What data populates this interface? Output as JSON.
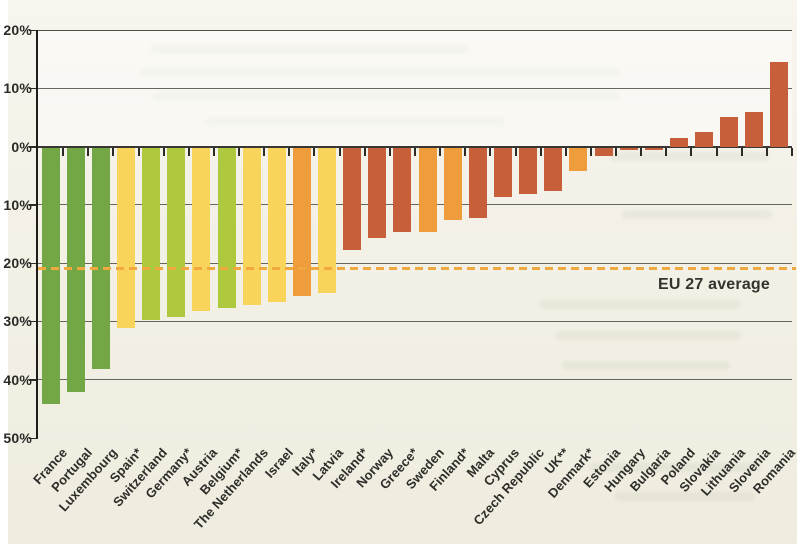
{
  "chart_data": {
    "type": "bar",
    "title": "",
    "xlabel": "",
    "ylabel": "",
    "ylim": [
      -50,
      20
    ],
    "yticks": [
      20,
      10,
      0,
      -10,
      -20,
      -30,
      -40,
      -50
    ],
    "ytick_labels": [
      "20%",
      "10%",
      "0%",
      "10%",
      "20%",
      "30%",
      "40%",
      "50%"
    ],
    "grid": "horizontal",
    "legend": "none",
    "annotation": {
      "label": "EU 27 average",
      "value": -21,
      "style": "dashed"
    },
    "categories": [
      "France",
      "Portugal",
      "Luxembourg",
      "Spain*",
      "Switzerland",
      "Germany*",
      "Austria",
      "Belgium*",
      "The Netherlands",
      "Israel",
      "Italy*",
      "Latvia",
      "Ireland*",
      "Norway",
      "Greece*",
      "Sweden",
      "Finland*",
      "Malta",
      "Cyprus",
      "Czech Republic",
      "UK**",
      "Denmark*",
      "Estonia",
      "Hungary",
      "Bulgaria",
      "Poland",
      "Slovakia",
      "Lithuania",
      "Slovenia",
      "Romania"
    ],
    "values": [
      -44,
      -42,
      -38,
      -31,
      -29.5,
      -29,
      -28,
      -27.5,
      -27,
      -26.5,
      -25.5,
      -25,
      -17.5,
      -15.5,
      -14.5,
      -14.5,
      -12.5,
      -12,
      -8.5,
      -8,
      -7.5,
      -4,
      -1.5,
      -0.5,
      -0.5,
      1.5,
      2.5,
      5,
      6,
      14.5
    ],
    "bar_color_keys": [
      "green",
      "green",
      "green",
      "yellow",
      "yellow_green",
      "yellow_green",
      "yellow",
      "yellow_green",
      "yellow",
      "yellow",
      "orange",
      "yellow",
      "red",
      "red",
      "red",
      "orange",
      "orange",
      "red",
      "red",
      "red",
      "red",
      "orange",
      "red",
      "red",
      "red",
      "red",
      "red",
      "red",
      "red",
      "red"
    ]
  },
  "palette": {
    "green": "#73A644",
    "yellow_green": "#AEC93E",
    "yellow": "#F8D55A",
    "orange": "#EF9C3D",
    "red": "#C85F3B",
    "dashed_line": "#EFA93E",
    "gridline": "#56544C",
    "axis": "#23221E",
    "text": "#2B2A26",
    "paper": "#F3F0E6"
  }
}
